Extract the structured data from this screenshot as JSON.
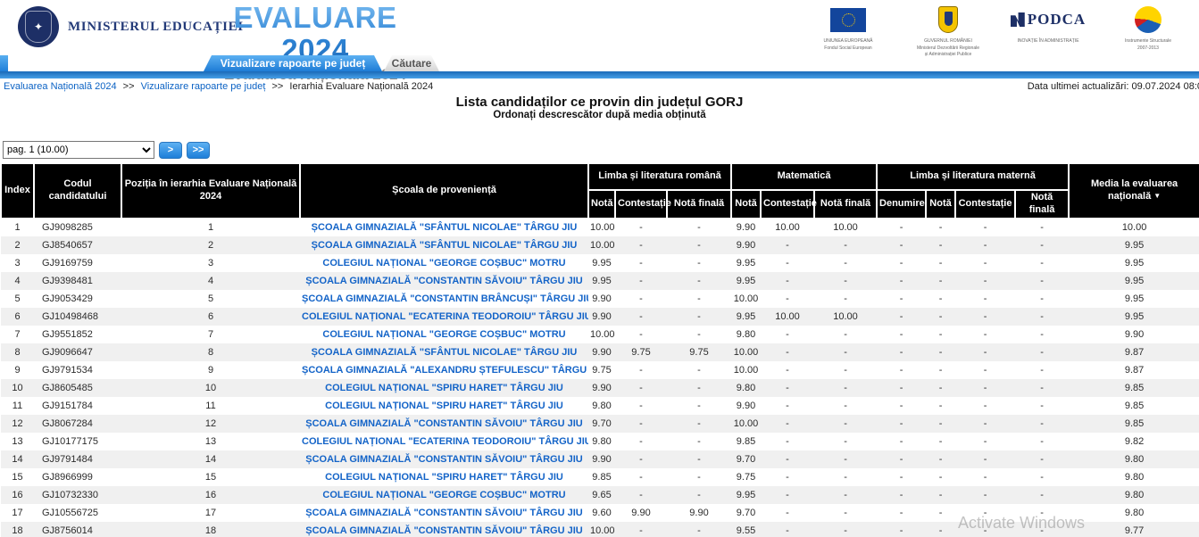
{
  "header": {
    "ministry": "MINISTERUL EDUCAȚIEI",
    "title": "EVALUARE 2024",
    "subtitle": "Evaluarea Națională 2024",
    "logos": [
      {
        "name": "eu-flag-logo",
        "line1": "UNIUNEA EUROPEANĂ",
        "line2": "Fondul Social European"
      },
      {
        "name": "guvernul-romaniei-logo",
        "line1": "GUVERNUL ROMÂNIEI",
        "line2": "Ministerul Dezvoltării Regionale",
        "line3": "și Administrației Publice"
      },
      {
        "name": "podca-logo",
        "line1": "PODCA",
        "line2": "INOVAȚIE ÎN ADMINISTRAȚIE"
      },
      {
        "name": "instrumente-structurale-logo",
        "line1": "Instrumente Structurale",
        "line2": "2007-2013"
      }
    ]
  },
  "tabs": [
    {
      "label": "Vizualizare rapoarte pe județ",
      "active": true
    },
    {
      "label": "Căutare",
      "active": false
    }
  ],
  "breadcrumb": {
    "separator": ">>",
    "items": [
      "Evaluarea Națională 2024",
      "Vizualizare rapoarte pe județ",
      "Ierarhia Evaluare Națională 2024"
    ]
  },
  "last_update": "Data ultimei actualizări: 09.07.2024 08:0",
  "page_title": "Lista candidaților ce provin din județul GORJ",
  "page_subtitle": "Ordonați descrescător după media obținută",
  "pagination": {
    "selected": "pag. 1 (10.00)",
    "next_label": ">",
    "last_label": ">>"
  },
  "watermark": "Activate Windows",
  "colors": {
    "accent_blue": "#2b7fd0",
    "tab_active": "#1e7cd6",
    "header_bg": "#000000",
    "link_blue": "#1464c8",
    "stripe": "#f0f0f0"
  },
  "table": {
    "fixed_columns": [
      "Index",
      "Codul candidatului",
      "Poziția în ierarhia Evaluare Națională 2024",
      "Școala de proveniență"
    ],
    "groups": [
      "Limba și literatura română",
      "Matematică",
      "Limba și literatura maternă"
    ],
    "sub_columns": [
      "Notă",
      "Contestație",
      "Notă finală",
      "Notă",
      "Contestație",
      "Notă finală",
      "Denumire",
      "Notă",
      "Contestație",
      "Notă finală"
    ],
    "media_column": "Media la evaluarea națională",
    "sort_icon": "▼",
    "rows": [
      {
        "index": "1",
        "code": "GJ9098285",
        "position": "1",
        "school": "ȘCOALA GIMNAZIALĂ \"SFÂNTUL NICOLAE\" TÂRGU JIU",
        "ro": [
          "10.00",
          "-",
          "-"
        ],
        "mat": [
          "9.90",
          "10.00",
          "10.00"
        ],
        "materna": [
          "-",
          "-",
          "-",
          "-"
        ],
        "media": "10.00"
      },
      {
        "index": "2",
        "code": "GJ8540657",
        "position": "2",
        "school": "ȘCOALA GIMNAZIALĂ \"SFÂNTUL NICOLAE\" TÂRGU JIU",
        "ro": [
          "10.00",
          "-",
          "-"
        ],
        "mat": [
          "9.90",
          "-",
          "-"
        ],
        "materna": [
          "-",
          "-",
          "-",
          "-"
        ],
        "media": "9.95"
      },
      {
        "index": "3",
        "code": "GJ9169759",
        "position": "3",
        "school": "COLEGIUL NAȚIONAL \"GEORGE COȘBUC\" MOTRU",
        "ro": [
          "9.95",
          "-",
          "-"
        ],
        "mat": [
          "9.95",
          "-",
          "-"
        ],
        "materna": [
          "-",
          "-",
          "-",
          "-"
        ],
        "media": "9.95"
      },
      {
        "index": "4",
        "code": "GJ9398481",
        "position": "4",
        "school": "ȘCOALA GIMNAZIALĂ \"CONSTANTIN SĂVOIU\" TÂRGU JIU",
        "ro": [
          "9.95",
          "-",
          "-"
        ],
        "mat": [
          "9.95",
          "-",
          "-"
        ],
        "materna": [
          "-",
          "-",
          "-",
          "-"
        ],
        "media": "9.95"
      },
      {
        "index": "5",
        "code": "GJ9053429",
        "position": "5",
        "school": "ȘCOALA GIMNAZIALĂ \"CONSTANTIN BRÂNCUȘI\" TÂRGU JIU",
        "ro": [
          "9.90",
          "-",
          "-"
        ],
        "mat": [
          "10.00",
          "-",
          "-"
        ],
        "materna": [
          "-",
          "-",
          "-",
          "-"
        ],
        "media": "9.95"
      },
      {
        "index": "6",
        "code": "GJ10498468",
        "position": "6",
        "school": "COLEGIUL NAȚIONAL \"ECATERINA TEODOROIU\" TÂRGU JIU",
        "ro": [
          "9.90",
          "-",
          "-"
        ],
        "mat": [
          "9.95",
          "10.00",
          "10.00"
        ],
        "materna": [
          "-",
          "-",
          "-",
          "-"
        ],
        "media": "9.95"
      },
      {
        "index": "7",
        "code": "GJ9551852",
        "position": "7",
        "school": "COLEGIUL NAȚIONAL \"GEORGE COȘBUC\" MOTRU",
        "ro": [
          "10.00",
          "-",
          "-"
        ],
        "mat": [
          "9.80",
          "-",
          "-"
        ],
        "materna": [
          "-",
          "-",
          "-",
          "-"
        ],
        "media": "9.90"
      },
      {
        "index": "8",
        "code": "GJ9096647",
        "position": "8",
        "school": "ȘCOALA GIMNAZIALĂ \"SFÂNTUL NICOLAE\" TÂRGU JIU",
        "ro": [
          "9.90",
          "9.75",
          "9.75"
        ],
        "mat": [
          "10.00",
          "-",
          "-"
        ],
        "materna": [
          "-",
          "-",
          "-",
          "-"
        ],
        "media": "9.87"
      },
      {
        "index": "9",
        "code": "GJ9791534",
        "position": "9",
        "school": "ȘCOALA GIMNAZIALĂ \"ALEXANDRU ȘTEFULESCU\" TÂRGU JIU",
        "ro": [
          "9.75",
          "-",
          "-"
        ],
        "mat": [
          "10.00",
          "-",
          "-"
        ],
        "materna": [
          "-",
          "-",
          "-",
          "-"
        ],
        "media": "9.87"
      },
      {
        "index": "10",
        "code": "GJ8605485",
        "position": "10",
        "school": "COLEGIUL NAȚIONAL \"SPIRU HARET\" TÂRGU JIU",
        "ro": [
          "9.90",
          "-",
          "-"
        ],
        "mat": [
          "9.80",
          "-",
          "-"
        ],
        "materna": [
          "-",
          "-",
          "-",
          "-"
        ],
        "media": "9.85"
      },
      {
        "index": "11",
        "code": "GJ9151784",
        "position": "11",
        "school": "COLEGIUL NAȚIONAL \"SPIRU HARET\" TÂRGU JIU",
        "ro": [
          "9.80",
          "-",
          "-"
        ],
        "mat": [
          "9.90",
          "-",
          "-"
        ],
        "materna": [
          "-",
          "-",
          "-",
          "-"
        ],
        "media": "9.85"
      },
      {
        "index": "12",
        "code": "GJ8067284",
        "position": "12",
        "school": "ȘCOALA GIMNAZIALĂ \"CONSTANTIN SĂVOIU\" TÂRGU JIU",
        "ro": [
          "9.70",
          "-",
          "-"
        ],
        "mat": [
          "10.00",
          "-",
          "-"
        ],
        "materna": [
          "-",
          "-",
          "-",
          "-"
        ],
        "media": "9.85"
      },
      {
        "index": "13",
        "code": "GJ10177175",
        "position": "13",
        "school": "COLEGIUL NAȚIONAL \"ECATERINA TEODOROIU\" TÂRGU JIU",
        "ro": [
          "9.80",
          "-",
          "-"
        ],
        "mat": [
          "9.85",
          "-",
          "-"
        ],
        "materna": [
          "-",
          "-",
          "-",
          "-"
        ],
        "media": "9.82"
      },
      {
        "index": "14",
        "code": "GJ9791484",
        "position": "14",
        "school": "ȘCOALA GIMNAZIALĂ \"CONSTANTIN SĂVOIU\" TÂRGU JIU",
        "ro": [
          "9.90",
          "-",
          "-"
        ],
        "mat": [
          "9.70",
          "-",
          "-"
        ],
        "materna": [
          "-",
          "-",
          "-",
          "-"
        ],
        "media": "9.80"
      },
      {
        "index": "15",
        "code": "GJ8966999",
        "position": "15",
        "school": "COLEGIUL NAȚIONAL \"SPIRU HARET\" TÂRGU JIU",
        "ro": [
          "9.85",
          "-",
          "-"
        ],
        "mat": [
          "9.75",
          "-",
          "-"
        ],
        "materna": [
          "-",
          "-",
          "-",
          "-"
        ],
        "media": "9.80"
      },
      {
        "index": "16",
        "code": "GJ10732330",
        "position": "16",
        "school": "COLEGIUL NAȚIONAL \"GEORGE COȘBUC\" MOTRU",
        "ro": [
          "9.65",
          "-",
          "-"
        ],
        "mat": [
          "9.95",
          "-",
          "-"
        ],
        "materna": [
          "-",
          "-",
          "-",
          "-"
        ],
        "media": "9.80"
      },
      {
        "index": "17",
        "code": "GJ10556725",
        "position": "17",
        "school": "ȘCOALA GIMNAZIALĂ \"CONSTANTIN SĂVOIU\" TÂRGU JIU",
        "ro": [
          "9.60",
          "9.90",
          "9.90"
        ],
        "mat": [
          "9.70",
          "-",
          "-"
        ],
        "materna": [
          "-",
          "-",
          "-",
          "-"
        ],
        "media": "9.80"
      },
      {
        "index": "18",
        "code": "GJ8756014",
        "position": "18",
        "school": "ȘCOALA GIMNAZIALĂ \"CONSTANTIN SĂVOIU\" TÂRGU JIU",
        "ro": [
          "10.00",
          "-",
          "-"
        ],
        "mat": [
          "9.55",
          "-",
          "-"
        ],
        "materna": [
          "-",
          "-",
          "-",
          "-"
        ],
        "media": "9.77"
      }
    ]
  }
}
